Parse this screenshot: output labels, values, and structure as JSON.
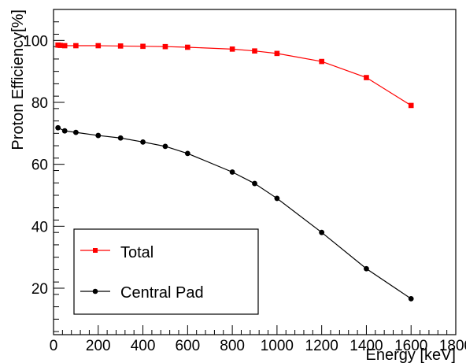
{
  "chart_data": {
    "type": "line",
    "xlabel": "Energy [keV]",
    "ylabel": "Proton Efficiency[%]",
    "xlim": [
      0,
      1800
    ],
    "ylim": [
      5,
      110
    ],
    "x_ticks": [
      0,
      200,
      400,
      600,
      800,
      1000,
      1200,
      1400,
      1600,
      1800
    ],
    "y_ticks": [
      20,
      40,
      60,
      80,
      100
    ],
    "grid": false,
    "legend_position": "bottom-left",
    "series": [
      {
        "name": "Total",
        "color": "#ff0000",
        "marker": "square",
        "x": [
          20,
          30,
          50,
          100,
          200,
          300,
          400,
          500,
          600,
          800,
          900,
          1000,
          1200,
          1400,
          1600
        ],
        "y": [
          98.5,
          98.4,
          98.3,
          98.3,
          98.3,
          98.2,
          98.1,
          98.0,
          97.8,
          97.2,
          96.6,
          95.8,
          93.2,
          88.0,
          79.0
        ]
      },
      {
        "name": "Central Pad",
        "color": "#000000",
        "marker": "circle",
        "x": [
          20,
          50,
          100,
          200,
          300,
          400,
          500,
          600,
          800,
          900,
          1000,
          1200,
          1400,
          1600
        ],
        "y": [
          71.8,
          70.8,
          70.3,
          69.3,
          68.5,
          67.2,
          65.8,
          63.5,
          57.5,
          53.8,
          49.0,
          38.0,
          26.3,
          16.6
        ]
      }
    ]
  }
}
